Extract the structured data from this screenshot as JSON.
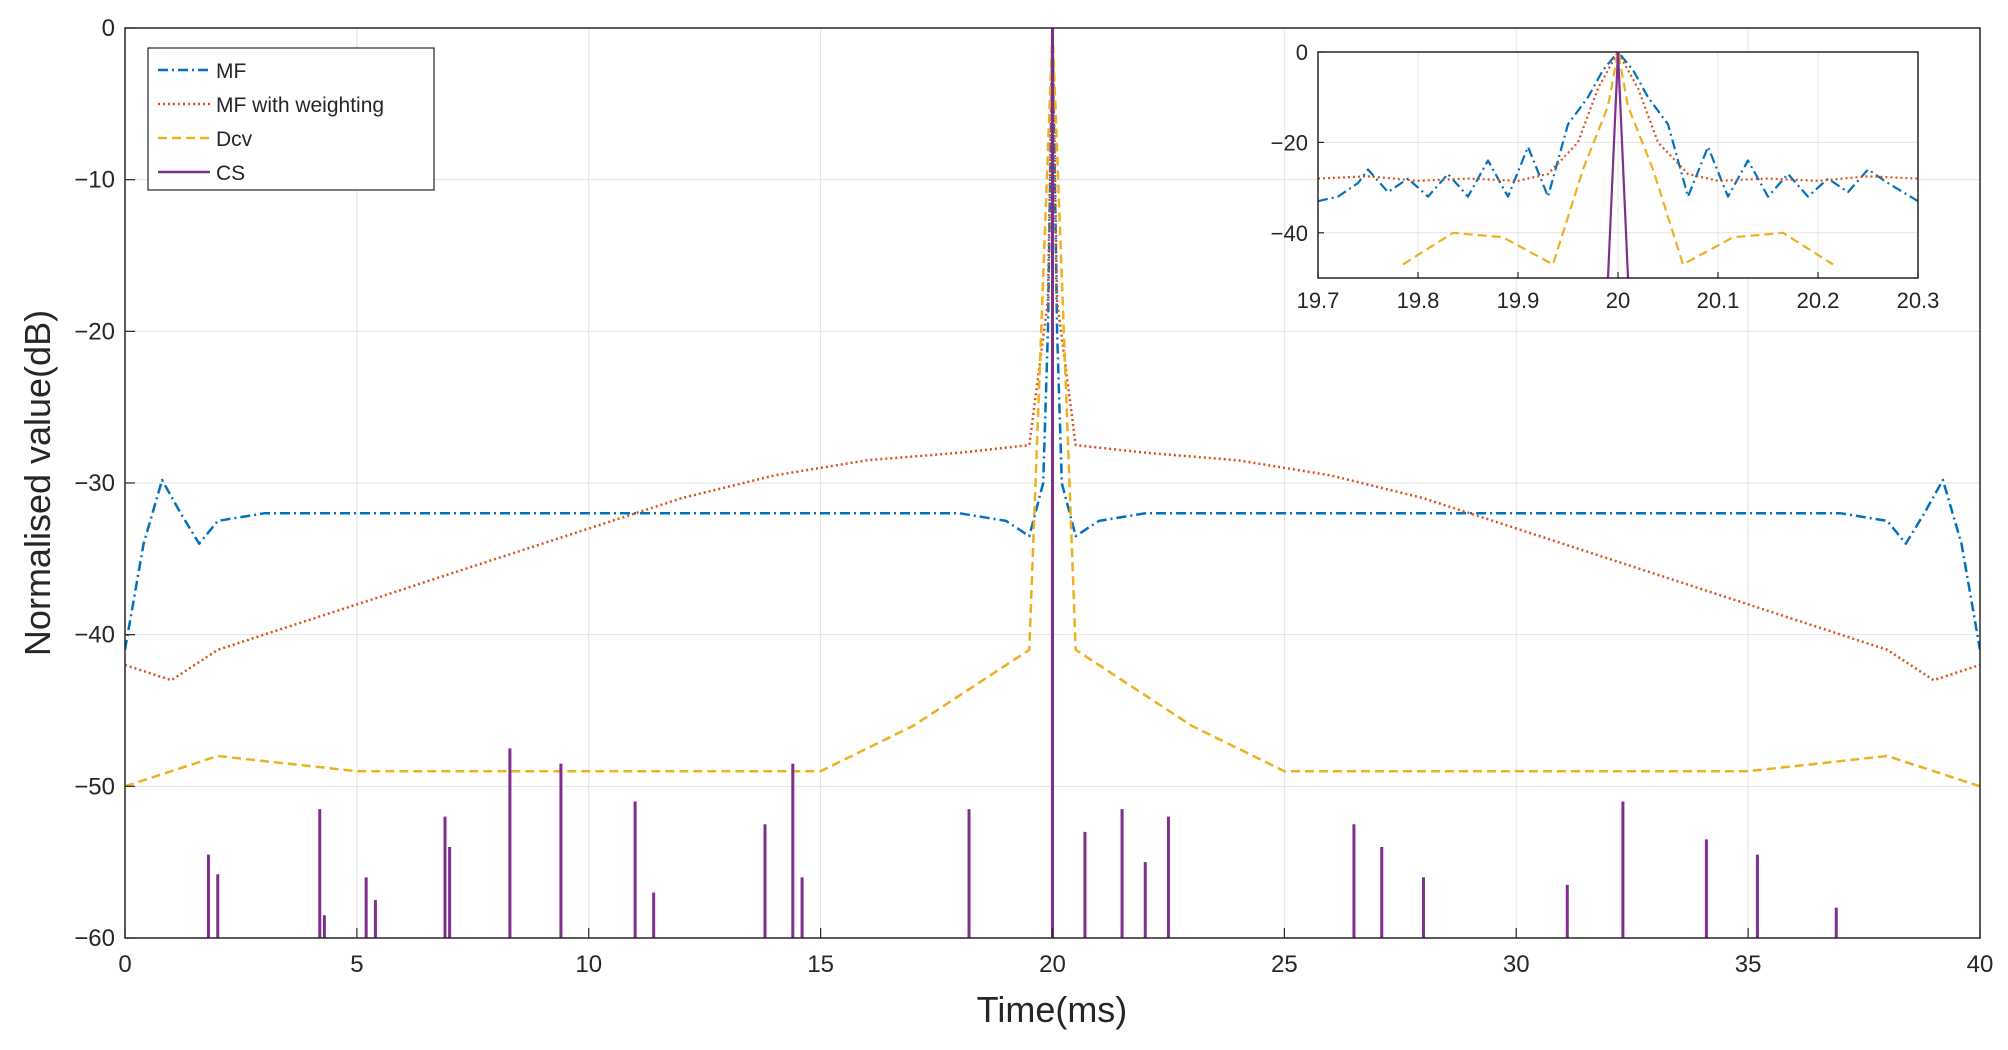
{
  "chart_data": [
    {
      "type": "line",
      "panel": "main",
      "title": "",
      "xlabel": "Time(ms)",
      "ylabel": "Normalised value(dB)",
      "xlim": [
        0,
        40
      ],
      "ylim": [
        -60,
        0
      ],
      "xticks": [
        "0",
        "5",
        "10",
        "15",
        "20",
        "25",
        "30",
        "35",
        "40"
      ],
      "yticks": [
        "0",
        "−10",
        "−20",
        "−30",
        "−40",
        "−50",
        "−60"
      ],
      "grid": true,
      "legend_position": "top-left",
      "legend": [
        "MF",
        "MF with weighting",
        "Dcv",
        "CS"
      ],
      "series": [
        {
          "name": "MF",
          "color": "#0072bd",
          "style": "dash-dot",
          "x": [
            0,
            0.4,
            0.8,
            1.2,
            1.6,
            2,
            3,
            5,
            8,
            12,
            16,
            18,
            19,
            19.5,
            19.8,
            19.9,
            20,
            20.1,
            20.2,
            20.5,
            21,
            22,
            24,
            28,
            32,
            35,
            37,
            38,
            38.4,
            38.8,
            39.2,
            39.6,
            40
          ],
          "values": [
            -41,
            -34,
            -29.8,
            -32,
            -34,
            -32.5,
            -32,
            -32,
            -32,
            -32,
            -32,
            -32,
            -32.5,
            -33.5,
            -30,
            -20,
            0,
            -20,
            -30,
            -33.5,
            -32.5,
            -32,
            -32,
            -32,
            -32,
            -32,
            -32,
            -32.5,
            -34,
            -32,
            -29.8,
            -34,
            -41
          ]
        },
        {
          "name": "MF with weighting",
          "color": "#d95319",
          "style": "dotted",
          "x": [
            0,
            1,
            2,
            4,
            6,
            8,
            10,
            12,
            14,
            16,
            18,
            19.5,
            19.9,
            20,
            20.1,
            20.5,
            22,
            24,
            26,
            28,
            30,
            32,
            34,
            36,
            38,
            39,
            40
          ],
          "values": [
            -42,
            -43,
            -41,
            -39,
            -37,
            -35,
            -33,
            -31,
            -29.5,
            -28.5,
            -28,
            -27.5,
            -18,
            0,
            -18,
            -27.5,
            -28,
            -28.5,
            -29.5,
            -31,
            -33,
            -35,
            -37,
            -39,
            -41,
            -43,
            -42
          ]
        },
        {
          "name": "Dcv",
          "color": "#edb120",
          "style": "dashed",
          "x": [
            0,
            2,
            5,
            10,
            15,
            17,
            18.5,
            19.5,
            20,
            20.5,
            21.5,
            23,
            25,
            30,
            35,
            38,
            40
          ],
          "values": [
            -50,
            -48,
            -49,
            -49,
            -49,
            -46,
            -43,
            -41,
            0,
            -41,
            -43,
            -46,
            -49,
            -49,
            -49,
            -48,
            -50
          ]
        },
        {
          "name": "CS",
          "color": "#7e2f8e",
          "style": "solid",
          "x": [
            1.8,
            2.0,
            4.2,
            4.3,
            5.2,
            5.4,
            6.9,
            7.0,
            8.3,
            9.4,
            11.0,
            11.4,
            13.8,
            14.4,
            14.6,
            18.2,
            20.0,
            20.7,
            21.5,
            22.0,
            22.5,
            26.5,
            27.1,
            28.0,
            31.1,
            32.3,
            34.1,
            35.2,
            36.9
          ],
          "values": [
            -54.5,
            -55.8,
            -51.5,
            -58.5,
            -56,
            -57.5,
            -52,
            -54,
            -47.5,
            -48.5,
            -51,
            -57,
            -52.5,
            -48.5,
            -56,
            -51.5,
            0,
            -53,
            -51.5,
            -55,
            -52,
            -52.5,
            -54,
            -56,
            -56.5,
            -51,
            -53.5,
            -54.5,
            -58
          ]
        }
      ]
    },
    {
      "type": "line",
      "panel": "inset",
      "title": "",
      "xlim": [
        19.7,
        20.3
      ],
      "ylim": [
        -50,
        0
      ],
      "xticks": [
        "19.7",
        "19.8",
        "19.9",
        "20",
        "20.1",
        "20.2",
        "20.3"
      ],
      "yticks": [
        "0",
        "−20",
        "−40"
      ],
      "grid": true,
      "series": [
        {
          "name": "MF",
          "color": "#0072bd",
          "style": "dash-dot",
          "x": [
            19.7,
            19.72,
            19.74,
            19.75,
            19.77,
            19.79,
            19.81,
            19.83,
            19.85,
            19.87,
            19.89,
            19.91,
            19.93,
            19.95,
            19.97,
            19.985,
            20,
            20.015,
            20.03,
            20.05,
            20.07,
            20.09,
            20.11,
            20.13,
            20.15,
            20.17,
            20.19,
            20.21,
            20.23,
            20.25,
            20.27,
            20.3
          ],
          "values": [
            -33,
            -32,
            -29,
            -26,
            -31,
            -28,
            -32,
            -27,
            -32,
            -24,
            -32,
            -21,
            -32,
            -16,
            -10,
            -4,
            0,
            -4,
            -10,
            -16,
            -32,
            -21,
            -32,
            -24,
            -32,
            -27,
            -32,
            -28,
            -31,
            -26,
            -29,
            -33
          ]
        },
        {
          "name": "MF with weighting",
          "color": "#d95319",
          "style": "dotted",
          "x": [
            19.7,
            19.75,
            19.8,
            19.85,
            19.9,
            19.93,
            19.96,
            19.98,
            20,
            20.02,
            20.04,
            20.07,
            20.1,
            20.15,
            20.2,
            20.25,
            20.3
          ],
          "values": [
            -28,
            -27.5,
            -28.5,
            -28,
            -28.5,
            -27,
            -20,
            -8,
            0,
            -8,
            -20,
            -27,
            -28.5,
            -28,
            -28.5,
            -27.5,
            -28
          ]
        },
        {
          "name": "Dcv",
          "color": "#edb120",
          "style": "dashed",
          "x": [
            19.785,
            19.835,
            19.885,
            19.935,
            19.965,
            19.99,
            20,
            20.01,
            20.035,
            20.065,
            20.115,
            20.165,
            20.215
          ],
          "values": [
            -47,
            -40,
            -41,
            -47,
            -26,
            -12,
            0,
            -12,
            -26,
            -47,
            -41,
            -40,
            -47
          ]
        },
        {
          "name": "CS",
          "color": "#7e2f8e",
          "style": "solid",
          "x": [
            19.99,
            20,
            20.01
          ],
          "values": [
            -50,
            0,
            -50
          ]
        }
      ]
    }
  ]
}
